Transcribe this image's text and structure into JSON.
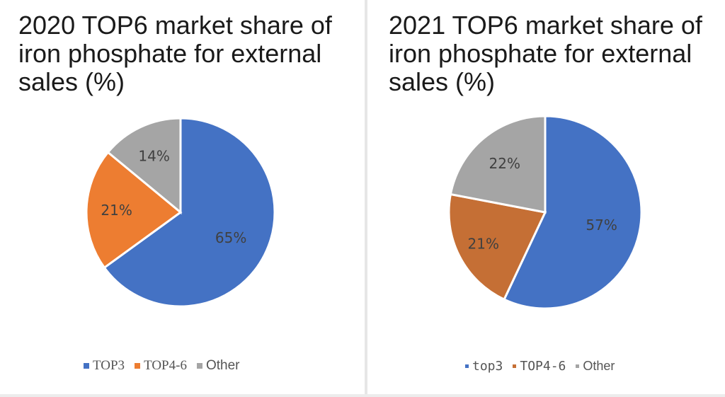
{
  "chart_data": [
    {
      "type": "pie",
      "title": "2020 TOP6 market share of iron phosphate for external sales (%)",
      "slices": [
        {
          "label": "TOP3",
          "value": 65,
          "color": "#4472c4",
          "text": "65%"
        },
        {
          "label": "TOP4-6",
          "value": 21,
          "color": "#ed7d31",
          "text": "21%"
        },
        {
          "label": "Other",
          "value": 14,
          "color": "#a5a5a5",
          "text": "14%"
        }
      ],
      "legend_position": "bottom"
    },
    {
      "type": "pie",
      "title": "2021 TOP6 market share of iron phosphate for external sales (%)",
      "slices": [
        {
          "label": "top3",
          "value": 57,
          "color": "#4472c4",
          "text": "57%"
        },
        {
          "label": "TOP4-6",
          "value": 21,
          "color": "#c56f35",
          "text": "21%"
        },
        {
          "label": "Other",
          "value": 22,
          "color": "#a5a5a5",
          "text": "22%"
        }
      ],
      "legend_position": "bottom"
    }
  ]
}
